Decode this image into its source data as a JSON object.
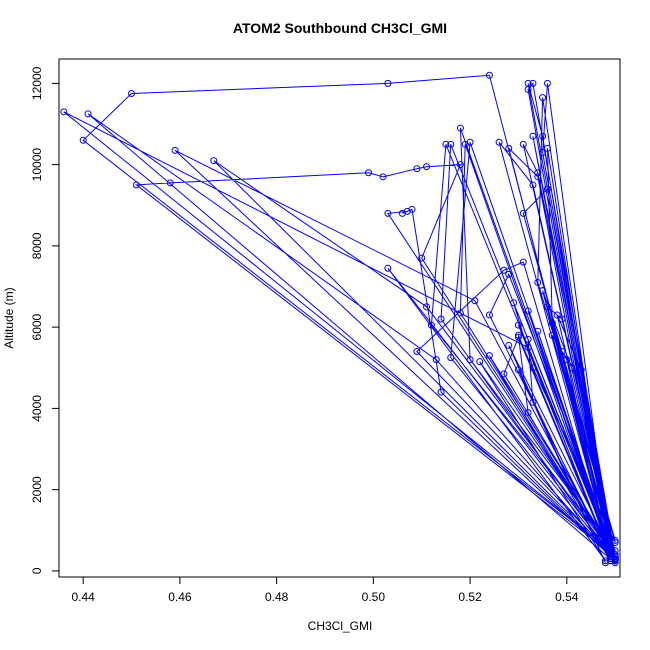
{
  "chart_data": {
    "type": "line",
    "title": "ATOM2 Southbound CH3Cl_GMI",
    "xlabel": "CH3Cl_GMI",
    "ylabel": "Altitude (m)",
    "xlim": [
      0.435,
      0.551
    ],
    "ylim": [
      -150,
      12600
    ],
    "xticks": [
      0.44,
      0.46,
      0.48,
      0.5,
      0.52,
      0.54
    ],
    "xtick_labels": [
      "0.44",
      "0.46",
      "0.48",
      "0.50",
      "0.52",
      "0.54"
    ],
    "yticks": [
      0,
      2000,
      4000,
      6000,
      8000,
      10000,
      12000
    ],
    "ytick_labels": [
      "0",
      "2000",
      "4000",
      "6000",
      "8000",
      "10000",
      "12000"
    ],
    "grid": false,
    "series": [
      {
        "color": "#0000ff",
        "marker": "open-circle",
        "points": [
          [
            0.55,
            250
          ],
          [
            0.535,
            6900
          ],
          [
            0.541,
            5000
          ],
          [
            0.55,
            280
          ],
          [
            0.538,
            6300
          ],
          [
            0.543,
            4950
          ],
          [
            0.549,
            400
          ],
          [
            0.537,
            6100
          ],
          [
            0.536,
            10400
          ],
          [
            0.549,
            500
          ],
          [
            0.533,
            10700
          ],
          [
            0.55,
            300
          ],
          [
            0.534,
            9800
          ],
          [
            0.531,
            10500
          ],
          [
            0.55,
            350
          ],
          [
            0.533,
            9500
          ],
          [
            0.526,
            10550
          ],
          [
            0.549,
            450
          ],
          [
            0.534,
            9700
          ],
          [
            0.528,
            10400
          ],
          [
            0.549,
            600
          ],
          [
            0.536,
            9400
          ],
          [
            0.531,
            8800
          ],
          [
            0.55,
            700
          ],
          [
            0.533,
            5000
          ],
          [
            0.529,
            6600
          ],
          [
            0.549,
            550
          ],
          [
            0.527,
            4850
          ],
          [
            0.53,
            5750
          ],
          [
            0.549,
            350
          ],
          [
            0.533,
            4150
          ],
          [
            0.532,
            5700
          ],
          [
            0.55,
            300
          ],
          [
            0.542,
            4900
          ],
          [
            0.539,
            5400
          ],
          [
            0.549,
            250
          ],
          [
            0.54,
            5200
          ],
          [
            0.537,
            5800
          ],
          [
            0.55,
            400
          ],
          [
            0.539,
            6200
          ],
          [
            0.536,
            6500
          ],
          [
            0.55,
            750
          ],
          [
            0.534,
            7100
          ],
          [
            0.535,
            11650
          ],
          [
            0.549,
            500
          ],
          [
            0.532,
            11850
          ],
          [
            0.533,
            12000
          ],
          [
            0.55,
            350
          ],
          [
            0.532,
            12000
          ],
          [
            0.535,
            10700
          ],
          [
            0.549,
            450
          ],
          [
            0.536,
            12000
          ],
          [
            0.535,
            10300
          ],
          [
            0.55,
            300
          ],
          [
            0.524,
            12200
          ],
          [
            0.503,
            12000
          ],
          [
            0.45,
            11750
          ],
          [
            0.44,
            10600
          ],
          [
            0.549,
            500
          ],
          [
            0.436,
            11300
          ],
          [
            0.532,
            5500
          ],
          [
            0.549,
            300
          ],
          [
            0.441,
            11250
          ],
          [
            0.513,
            5200
          ],
          [
            0.55,
            250
          ],
          [
            0.459,
            10350
          ],
          [
            0.521,
            6650
          ],
          [
            0.549,
            400
          ],
          [
            0.467,
            10100
          ],
          [
            0.511,
            6500
          ],
          [
            0.55,
            350
          ],
          [
            0.451,
            9500
          ],
          [
            0.458,
            9550
          ],
          [
            0.499,
            9800
          ],
          [
            0.502,
            9700
          ],
          [
            0.509,
            9900
          ],
          [
            0.511,
            9950
          ],
          [
            0.518,
            10000
          ],
          [
            0.51,
            7700
          ],
          [
            0.55,
            300
          ],
          [
            0.503,
            8800
          ],
          [
            0.507,
            8850
          ],
          [
            0.506,
            8800
          ],
          [
            0.508,
            8900
          ],
          [
            0.514,
            4400
          ],
          [
            0.55,
            250
          ],
          [
            0.515,
            10500
          ],
          [
            0.512,
            6050
          ],
          [
            0.549,
            600
          ],
          [
            0.516,
            10500
          ],
          [
            0.514,
            6200
          ],
          [
            0.549,
            400
          ],
          [
            0.519,
            10500
          ],
          [
            0.518,
            6350
          ],
          [
            0.55,
            300
          ],
          [
            0.52,
            10550
          ],
          [
            0.516,
            5250
          ],
          [
            0.55,
            250
          ],
          [
            0.518,
            10900
          ],
          [
            0.52,
            5200
          ],
          [
            0.55,
            500
          ],
          [
            0.528,
            7300
          ],
          [
            0.524,
            6300
          ],
          [
            0.549,
            350
          ],
          [
            0.531,
            7600
          ],
          [
            0.527,
            7400
          ],
          [
            0.509,
            5400
          ],
          [
            0.55,
            300
          ],
          [
            0.503,
            7450
          ],
          [
            0.548,
            250
          ],
          [
            0.522,
            5150
          ],
          [
            0.55,
            400
          ],
          [
            0.524,
            5300
          ],
          [
            0.549,
            250
          ],
          [
            0.53,
            4950
          ],
          [
            0.548,
            200
          ],
          [
            0.528,
            5550
          ],
          [
            0.55,
            300
          ],
          [
            0.53,
            6050
          ],
          [
            0.549,
            350
          ],
          [
            0.532,
            6400
          ],
          [
            0.549,
            450
          ],
          [
            0.534,
            5900
          ],
          [
            0.55,
            300
          ],
          [
            0.535,
            6900
          ],
          [
            0.549,
            400
          ],
          [
            0.53,
            5800
          ],
          [
            0.532,
            3900
          ],
          [
            0.55,
            200
          ]
        ]
      }
    ]
  }
}
